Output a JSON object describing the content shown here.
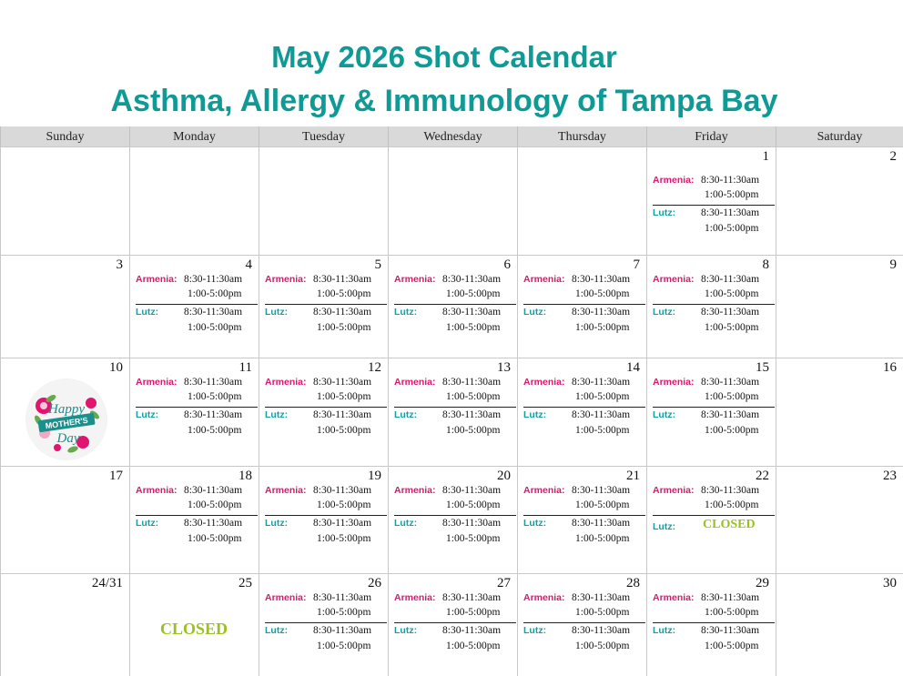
{
  "title": "May 2026 Shot Calendar",
  "subtitle": "Asthma, Allergy & Immunology of Tampa Bay",
  "days": [
    "Sunday",
    "Monday",
    "Tuesday",
    "Wednesday",
    "Thursday",
    "Friday",
    "Saturday"
  ],
  "labels": {
    "armenia": "Armenia:",
    "lutz": "Lutz:"
  },
  "hours": {
    "morning": "8:30-11:30am",
    "afternoon": "1:00-5:00pm"
  },
  "closed": "CLOSED",
  "weeks": [
    [
      "",
      "",
      "",
      "",
      "",
      "1",
      "2"
    ],
    [
      "3",
      "4",
      "5",
      "6",
      "7",
      "8",
      "9"
    ],
    [
      "10",
      "11",
      "12",
      "13",
      "14",
      "15",
      "16"
    ],
    [
      "17",
      "18",
      "19",
      "20",
      "21",
      "22",
      "23"
    ],
    [
      "24/31",
      "25",
      "26",
      "27",
      "28",
      "29",
      "30"
    ]
  ],
  "mothers_day": {
    "image_text": "Happy Mother's Day",
    "colors": {
      "teal": "#1b8f8c",
      "pink": "#e0156f",
      "green": "#6aa84f"
    }
  }
}
